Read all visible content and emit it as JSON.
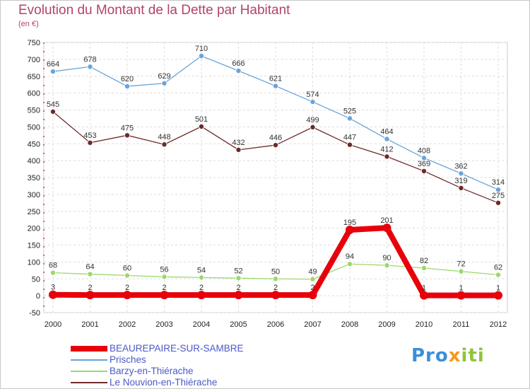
{
  "header": {
    "title": "Evolution du Montant de la Dette par Habitant",
    "subtitle": "(en €)"
  },
  "logo": {
    "text_part1": "Pro",
    "text_part2": "x",
    "text_part3": "iti"
  },
  "chart_data": {
    "type": "line",
    "title": "Evolution du Montant de la Dette par Habitant",
    "subtitle": "(en €)",
    "xlabel": "",
    "ylabel": "",
    "categories": [
      "2000",
      "2001",
      "2002",
      "2003",
      "2004",
      "2005",
      "2006",
      "2007",
      "2008",
      "2009",
      "2010",
      "2011",
      "2012"
    ],
    "ylim": [
      -50,
      750
    ],
    "yticks": [
      -50,
      0,
      50,
      100,
      150,
      200,
      250,
      300,
      350,
      400,
      450,
      500,
      550,
      600,
      650,
      700,
      750
    ],
    "grid": true,
    "legend_position": "bottom-left",
    "series": [
      {
        "name": "BEAUREPAIRE-SUR-SAMBRE",
        "color": "#e8000b",
        "values": [
          3,
          2,
          2,
          2,
          2,
          2,
          2,
          2,
          195,
          201,
          1,
          1,
          1
        ]
      },
      {
        "name": "Prisches",
        "color": "#6aa4d8",
        "values": [
          664,
          678,
          620,
          629,
          710,
          666,
          621,
          574,
          525,
          464,
          408,
          362,
          314
        ]
      },
      {
        "name": "Barzy-en-Thiérache",
        "color": "#9bd86b",
        "values": [
          68,
          64,
          60,
          56,
          54,
          52,
          50,
          49,
          94,
          90,
          82,
          72,
          62
        ]
      },
      {
        "name": "Le Nouvion-en-Thiérache",
        "color": "#6e2a2a",
        "values": [
          545,
          453,
          475,
          448,
          501,
          432,
          446,
          499,
          447,
          412,
          369,
          319,
          275
        ]
      }
    ]
  }
}
